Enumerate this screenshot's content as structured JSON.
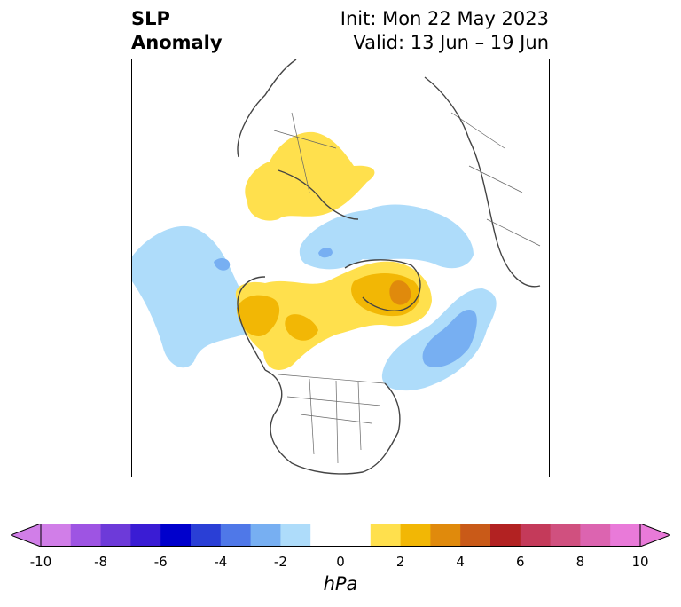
{
  "title": {
    "left_line1": "SLP",
    "left_line2": "Anomaly",
    "init": "Init: Mon 22 May 2023",
    "valid": "Valid: 13 Jun – 19 Jun"
  },
  "colorbar": {
    "units": "hPa",
    "ticks": [
      "-10",
      "-8",
      "-6",
      "-4",
      "-2",
      "0",
      "2",
      "4",
      "6",
      "8",
      "10"
    ],
    "colors": [
      "#d17ee8",
      "#9e54e3",
      "#6d3ad9",
      "#3a1cd4",
      "#0000cc",
      "#2a3fd6",
      "#4f78e8",
      "#77aff2",
      "#aedcfa",
      "#ffffff",
      "#ffffff",
      "#ffe04d",
      "#f2b705",
      "#e08a0c",
      "#c95a18",
      "#b22222",
      "#c43a5a",
      "#d0507f",
      "#dc64b0",
      "#e97ad9"
    ],
    "under_color": "#d17ee8",
    "over_color": "#e97ad9"
  },
  "map": {
    "projection": "north-polar",
    "anomaly_regions": [
      {
        "name": "eastern-europe-high",
        "level": "+1 to +2 hPa",
        "color": "#ffe04d"
      },
      {
        "name": "arctic-canada-greenland-high",
        "level": "+2 to +5 hPa",
        "color": "#f2b705"
      },
      {
        "name": "alaska-high",
        "level": "+2 to +4 hPa",
        "color": "#f2b705"
      },
      {
        "name": "siberia-low",
        "level": "-1 to -3 hPa",
        "color": "#aedcfa"
      },
      {
        "name": "north-atlantic-low",
        "level": "-2 to -4 hPa",
        "color": "#77aff2"
      },
      {
        "name": "north-pacific-low",
        "level": "-1 to -3 hPa",
        "color": "#aedcfa"
      }
    ]
  }
}
